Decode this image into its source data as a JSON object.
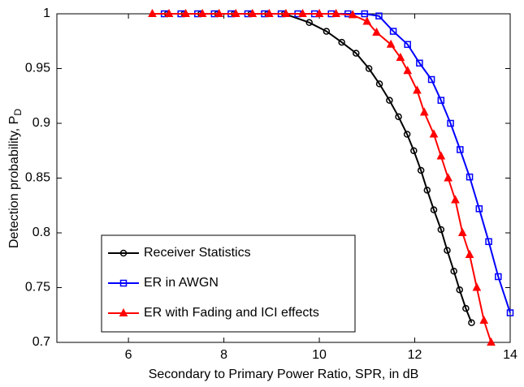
{
  "chart_data": {
    "type": "line",
    "xlabel": "Secondary to Primary Power Ratio, SPR, in dB",
    "ylabel": {
      "text": "Detection probability, P",
      "subscript": "D"
    },
    "xlim": [
      4.5,
      14
    ],
    "xticks": [
      6,
      8,
      10,
      12,
      14
    ],
    "ylim": [
      0.7,
      1
    ],
    "yticks": [
      0.7,
      0.75,
      0.8,
      0.85,
      0.9,
      0.95,
      1
    ],
    "grid": false,
    "legend": "lower left",
    "series": [
      {
        "name": "Receiver Statistics",
        "color": "#000000",
        "marker": "circle",
        "x": [
          6.82,
          7.17,
          7.52,
          7.87,
          8.22,
          8.57,
          8.92,
          9.27,
          9.79,
          10.15,
          10.47,
          10.77,
          11.04,
          11.26,
          11.47,
          11.66,
          11.84,
          11.98,
          12.13,
          12.26,
          12.4,
          12.55,
          12.68,
          12.82,
          12.94,
          13.07,
          13.19
        ],
        "values": [
          1,
          1,
          1,
          1,
          1,
          1,
          1,
          1,
          0.992,
          0.984,
          0.974,
          0.964,
          0.95,
          0.936,
          0.921,
          0.906,
          0.89,
          0.875,
          0.857,
          0.839,
          0.821,
          0.803,
          0.784,
          0.765,
          0.748,
          0.731,
          0.718
        ]
      },
      {
        "name": "ER in AWGN",
        "color": "#0000ff",
        "marker": "square",
        "x": [
          6.75,
          7.1,
          7.45,
          7.8,
          8.15,
          8.5,
          8.85,
          9.2,
          9.55,
          9.9,
          10.25,
          10.6,
          10.95,
          11.25,
          11.55,
          11.85,
          12.1,
          12.35,
          12.55,
          12.75,
          12.95,
          13.15,
          13.35,
          13.55,
          13.75,
          14.0
        ],
        "values": [
          1,
          1,
          1,
          1,
          1,
          1,
          1,
          1,
          1,
          1,
          1,
          1,
          1,
          0.998,
          0.984,
          0.972,
          0.955,
          0.94,
          0.921,
          0.9,
          0.876,
          0.851,
          0.822,
          0.792,
          0.76,
          0.727
        ]
      },
      {
        "name": "ER with Fading and ICI effects",
        "color": "#ff0000",
        "marker": "triangle",
        "x": [
          6.5,
          6.85,
          7.2,
          7.55,
          7.9,
          8.25,
          8.6,
          8.95,
          9.3,
          9.65,
          10.0,
          10.35,
          10.7,
          11.0,
          11.2,
          11.5,
          11.7,
          11.85,
          12.05,
          12.2,
          12.4,
          12.55,
          12.7,
          12.85,
          13.0,
          13.15,
          13.3,
          13.45,
          13.6
        ],
        "values": [
          1,
          1,
          1,
          1,
          1,
          1,
          1,
          1,
          1,
          1,
          1,
          1,
          0.999,
          0.993,
          0.983,
          0.972,
          0.96,
          0.948,
          0.93,
          0.91,
          0.89,
          0.87,
          0.85,
          0.83,
          0.8,
          0.78,
          0.75,
          0.72,
          0.7
        ]
      }
    ]
  }
}
